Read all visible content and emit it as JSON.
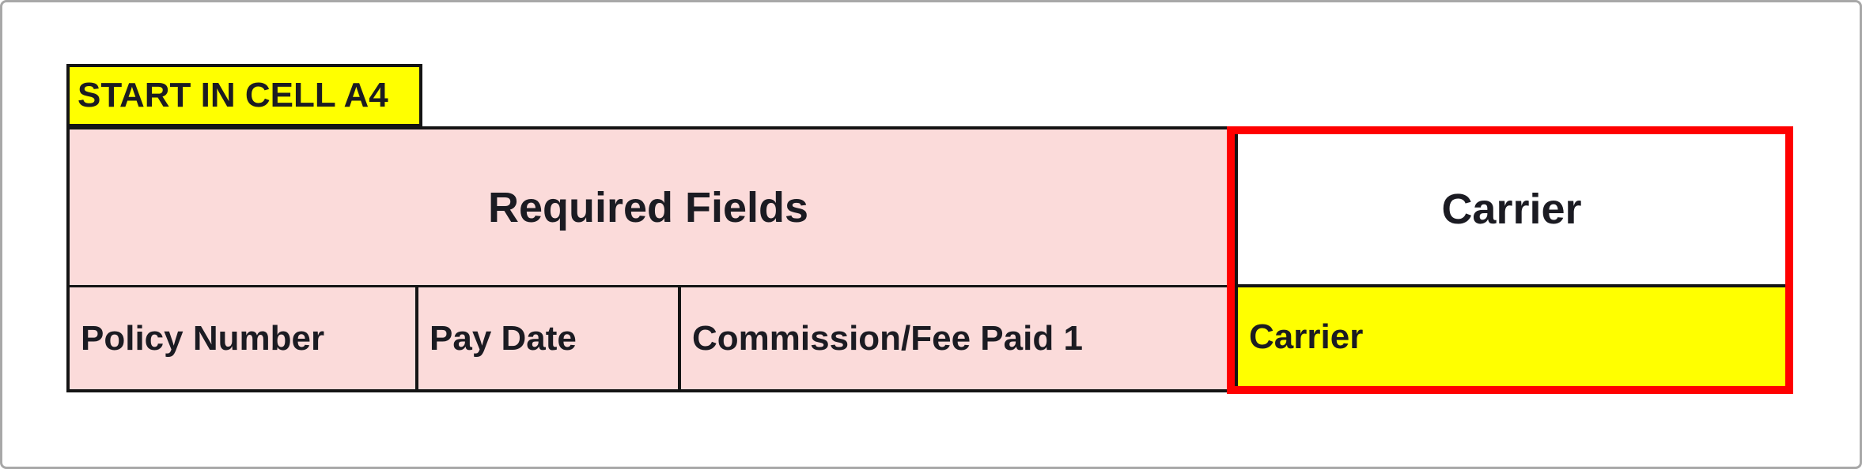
{
  "colors": {
    "pink_fill": "#FBDBDA",
    "yellow_fill": "#FFFF00",
    "highlight_red": "#FF0000",
    "cell_border_black": "#141414",
    "frame_gray": "#A8A8A8",
    "text_dark": "#1B1B22"
  },
  "start_cell": {
    "label": "START IN CELL A4"
  },
  "table": {
    "merged_header_label": "Required Fields",
    "carrier_header_label": "Carrier",
    "required_columns": [
      "Policy Number",
      "Pay Date",
      "Commission/Fee Paid 1"
    ],
    "carrier_column_label": "Carrier"
  }
}
